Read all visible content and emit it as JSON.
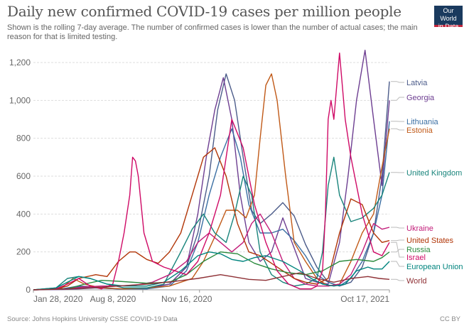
{
  "header": {
    "title": "Daily new confirmed COVID-19 cases per million people",
    "subtitle": "Shown is the rolling 7-day average. The number of confirmed cases is lower than the number of actual cases; the main reason for that is limited testing.",
    "logo_line1": "Our World",
    "logo_line2": "in Data"
  },
  "footer": {
    "source": "Source: Johns Hopkins University CSSE COVID-19 Data",
    "license": "CC BY"
  },
  "chart_data": {
    "type": "line",
    "title": "Daily new confirmed COVID-19 cases per million people",
    "xlabel": "",
    "ylabel": "",
    "x_unit": "days since Jan 28, 2020",
    "x_range": [
      0,
      628
    ],
    "ylim": [
      0,
      1200
    ],
    "y_ticks": [
      0,
      200,
      400,
      600,
      800,
      1000,
      1200
    ],
    "y_tick_labels": [
      "0",
      "200",
      "400",
      "600",
      "800",
      "1,000",
      "1,200"
    ],
    "x_ticks": [
      0,
      193,
      293,
      628
    ],
    "x_tick_labels": [
      "Jan 28, 2020",
      "Aug 8, 2020",
      "Nov 16, 2020",
      "Oct 17, 2021"
    ],
    "grid": true,
    "legend_placement": "right",
    "series": [
      {
        "name": "Latvia",
        "color": "#4c5c8a",
        "x": [
          0,
          50,
          80,
          110,
          150,
          200,
          240,
          270,
          290,
          310,
          325,
          340,
          355,
          370,
          385,
          400,
          420,
          440,
          460,
          480,
          500,
          520,
          540,
          560,
          580,
          600,
          615,
          628
        ],
        "y": [
          0,
          5,
          20,
          15,
          5,
          5,
          30,
          120,
          300,
          600,
          950,
          1140,
          1000,
          700,
          420,
          350,
          400,
          460,
          390,
          240,
          120,
          40,
          20,
          40,
          120,
          300,
          600,
          1100
        ]
      },
      {
        "name": "Georgia",
        "color": "#6d3e91",
        "x": [
          0,
          50,
          80,
          110,
          150,
          200,
          240,
          270,
          290,
          305,
          320,
          335,
          350,
          365,
          380,
          400,
          420,
          440,
          460,
          480,
          500,
          520,
          540,
          555,
          570,
          585,
          600,
          615,
          628
        ],
        "y": [
          0,
          2,
          5,
          10,
          5,
          10,
          30,
          120,
          400,
          700,
          950,
          1120,
          900,
          500,
          250,
          150,
          200,
          380,
          220,
          60,
          40,
          30,
          250,
          600,
          1000,
          1265,
          900,
          550,
          1000
        ]
      },
      {
        "name": "Lithuania",
        "color": "#3b6fa3",
        "x": [
          0,
          50,
          80,
          110,
          150,
          200,
          240,
          270,
          290,
          310,
          330,
          350,
          365,
          380,
          400,
          420,
          440,
          460,
          480,
          500,
          520,
          540,
          560,
          580,
          600,
          615,
          628
        ],
        "y": [
          0,
          5,
          15,
          10,
          5,
          5,
          20,
          100,
          250,
          500,
          700,
          850,
          700,
          450,
          300,
          300,
          320,
          260,
          180,
          80,
          40,
          20,
          60,
          150,
          300,
          500,
          890
        ]
      },
      {
        "name": "Estonia",
        "color": "#c05917",
        "x": [
          0,
          50,
          70,
          90,
          120,
          160,
          200,
          240,
          280,
          300,
          320,
          340,
          360,
          375,
          390,
          400,
          410,
          420,
          430,
          445,
          460,
          480,
          500,
          520,
          540,
          560,
          580,
          600,
          615,
          628
        ],
        "y": [
          0,
          10,
          60,
          30,
          10,
          5,
          10,
          20,
          60,
          150,
          280,
          420,
          420,
          380,
          500,
          800,
          1080,
          1140,
          1000,
          600,
          250,
          150,
          60,
          20,
          30,
          150,
          300,
          400,
          650,
          850
        ]
      },
      {
        "name": "United Kingdom",
        "color": "#18847b",
        "x": [
          0,
          40,
          60,
          80,
          100,
          130,
          160,
          200,
          230,
          260,
          280,
          300,
          320,
          340,
          355,
          370,
          385,
          400,
          420,
          440,
          460,
          480,
          500,
          510,
          520,
          530,
          540,
          560,
          580,
          600,
          615,
          628
        ],
        "y": [
          0,
          10,
          60,
          70,
          60,
          30,
          10,
          10,
          30,
          200,
          320,
          400,
          300,
          250,
          400,
          600,
          500,
          200,
          80,
          40,
          20,
          30,
          60,
          200,
          550,
          700,
          500,
          360,
          380,
          430,
          500,
          620
        ]
      },
      {
        "name": "Ukraine",
        "color": "#c21c79",
        "x": [
          0,
          60,
          90,
          120,
          150,
          180,
          210,
          240,
          270,
          290,
          310,
          330,
          350,
          370,
          385,
          400,
          420,
          440,
          460,
          480,
          500,
          520,
          540,
          560,
          580,
          600,
          615,
          628
        ],
        "y": [
          0,
          5,
          15,
          20,
          20,
          25,
          40,
          80,
          150,
          250,
          300,
          250,
          200,
          250,
          350,
          400,
          300,
          150,
          60,
          30,
          20,
          20,
          30,
          80,
          200,
          350,
          320,
          330
        ]
      },
      {
        "name": "United States",
        "color": "#b13507",
        "x": [
          0,
          40,
          60,
          80,
          110,
          130,
          150,
          170,
          180,
          190,
          200,
          220,
          240,
          260,
          280,
          300,
          320,
          340,
          360,
          380,
          400,
          420,
          440,
          460,
          480,
          500,
          520,
          540,
          560,
          580,
          600,
          615,
          628
        ],
        "y": [
          0,
          5,
          20,
          60,
          80,
          70,
          150,
          200,
          200,
          180,
          160,
          140,
          200,
          300,
          500,
          700,
          750,
          600,
          350,
          200,
          180,
          140,
          100,
          60,
          40,
          30,
          60,
          300,
          480,
          450,
          300,
          250,
          260
        ]
      },
      {
        "name": "Russia",
        "color": "#2a8a3d",
        "x": [
          0,
          60,
          90,
          120,
          150,
          200,
          240,
          270,
          300,
          330,
          360,
          390,
          420,
          450,
          480,
          510,
          540,
          570,
          600,
          615,
          628
        ],
        "y": [
          0,
          5,
          30,
          50,
          45,
          35,
          40,
          80,
          150,
          200,
          190,
          140,
          110,
          90,
          80,
          100,
          150,
          160,
          150,
          170,
          200
        ]
      },
      {
        "name": "Israel",
        "color": "#cf0a66",
        "x": [
          0,
          40,
          60,
          80,
          100,
          120,
          140,
          150,
          160,
          170,
          175,
          180,
          185,
          195,
          210,
          230,
          250,
          270,
          290,
          310,
          330,
          350,
          370,
          390,
          410,
          430,
          450,
          470,
          490,
          500,
          510,
          515,
          520,
          525,
          530,
          540,
          550,
          560,
          580,
          600,
          615,
          628
        ],
        "y": [
          0,
          5,
          30,
          60,
          20,
          5,
          30,
          150,
          300,
          500,
          700,
          680,
          600,
          300,
          150,
          120,
          100,
          80,
          150,
          300,
          500,
          900,
          750,
          450,
          250,
          100,
          30,
          5,
          5,
          20,
          100,
          400,
          900,
          1000,
          900,
          1250,
          900,
          700,
          400,
          200,
          180,
          250
        ]
      },
      {
        "name": "European Union",
        "color": "#00847e",
        "x": [
          0,
          40,
          60,
          80,
          100,
          130,
          160,
          200,
          230,
          260,
          290,
          310,
          330,
          350,
          370,
          390,
          410,
          440,
          470,
          490,
          510,
          530,
          550,
          570,
          590,
          600,
          615,
          628
        ],
        "y": [
          0,
          10,
          40,
          70,
          60,
          30,
          20,
          20,
          40,
          100,
          180,
          200,
          190,
          160,
          150,
          170,
          180,
          150,
          100,
          60,
          30,
          20,
          30,
          100,
          120,
          110,
          110,
          150
        ]
      },
      {
        "name": "World",
        "color": "#8e3035",
        "x": [
          0,
          60,
          100,
          150,
          200,
          250,
          290,
          330,
          350,
          380,
          410,
          440,
          470,
          500,
          530,
          560,
          590,
          610,
          628
        ],
        "y": [
          0,
          5,
          10,
          20,
          30,
          45,
          60,
          80,
          70,
          55,
          50,
          70,
          90,
          60,
          40,
          60,
          70,
          60,
          55
        ]
      }
    ],
    "legend": [
      {
        "name": "Latvia",
        "label_value": 1100
      },
      {
        "name": "Georgia",
        "label_value": 1000
      },
      {
        "name": "Lithuania",
        "label_value": 890
      },
      {
        "name": "Estonia",
        "label_value": 850
      },
      {
        "name": "United Kingdom",
        "label_value": 620
      },
      {
        "name": "Ukraine",
        "label_value": 330
      },
      {
        "name": "United States",
        "label_value": 260
      },
      {
        "name": "Russia",
        "label_value": 200
      },
      {
        "name": "Israel",
        "label_value": 250
      },
      {
        "name": "European Union",
        "label_value": 150
      },
      {
        "name": "World",
        "label_value": 55
      }
    ]
  }
}
